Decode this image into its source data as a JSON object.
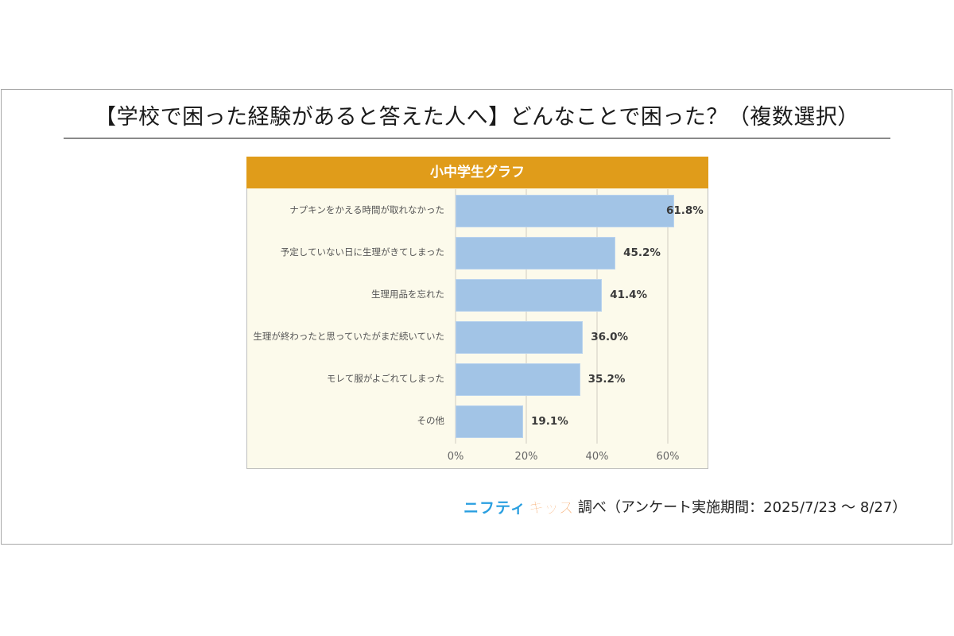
{
  "title": "【学校で困った経験があると答えた人へ】どんなことで困った？（複数選択）",
  "panel": {
    "header": "小中学生グラフ"
  },
  "colors": {
    "header": "#e09c1a",
    "panel_bg": "#fcfaeb",
    "bar": "#a2c4e6"
  },
  "rows": [
    {
      "label": "ナプキンをかえる時間が取れなかった",
      "value": 61.8,
      "display": "61.8%"
    },
    {
      "label": "予定していない日に生理がきてしまった",
      "value": 45.2,
      "display": "45.2%"
    },
    {
      "label": "生理用品を忘れた",
      "value": 41.4,
      "display": "41.4%"
    },
    {
      "label": "生理が終わったと思っていたがまだ続いていた",
      "value": 36.0,
      "display": "36.0%"
    },
    {
      "label": "モレて服がよごれてしまった",
      "value": 35.2,
      "display": "35.2%"
    },
    {
      "label": "その他",
      "value": 19.1,
      "display": "19.1%"
    }
  ],
  "axis": {
    "ticks": [
      "0%",
      "20%",
      "40%",
      "60%"
    ]
  },
  "footer": {
    "logo_part1": "ニフティ",
    "logo_part2": "キッズ",
    "text": "調べ（アンケート実施期間：2025/7/23 ～ 8/27）"
  },
  "chart_data": {
    "type": "bar",
    "orientation": "horizontal",
    "title": "【学校で困った経験があると答えた人へ】どんなことで困った？（複数選択）",
    "subtitle": "小中学生グラフ",
    "categories": [
      "ナプキンをかえる時間が取れなかった",
      "予定していない日に生理がきてしまった",
      "生理用品を忘れた",
      "生理が終わったと思っていたがまだ続いていた",
      "モレて服がよごれてしまった",
      "その他"
    ],
    "values": [
      61.8,
      45.2,
      41.4,
      36.0,
      35.2,
      19.1
    ],
    "xlabel": "",
    "ylabel": "",
    "xlim": [
      0,
      70
    ],
    "xticks": [
      "0%",
      "20%",
      "40%",
      "60%"
    ],
    "grid": true,
    "legend": null,
    "annotation": "ニフティキッズ調べ（アンケート実施期間：2025/7/23 ～ 8/27）"
  }
}
